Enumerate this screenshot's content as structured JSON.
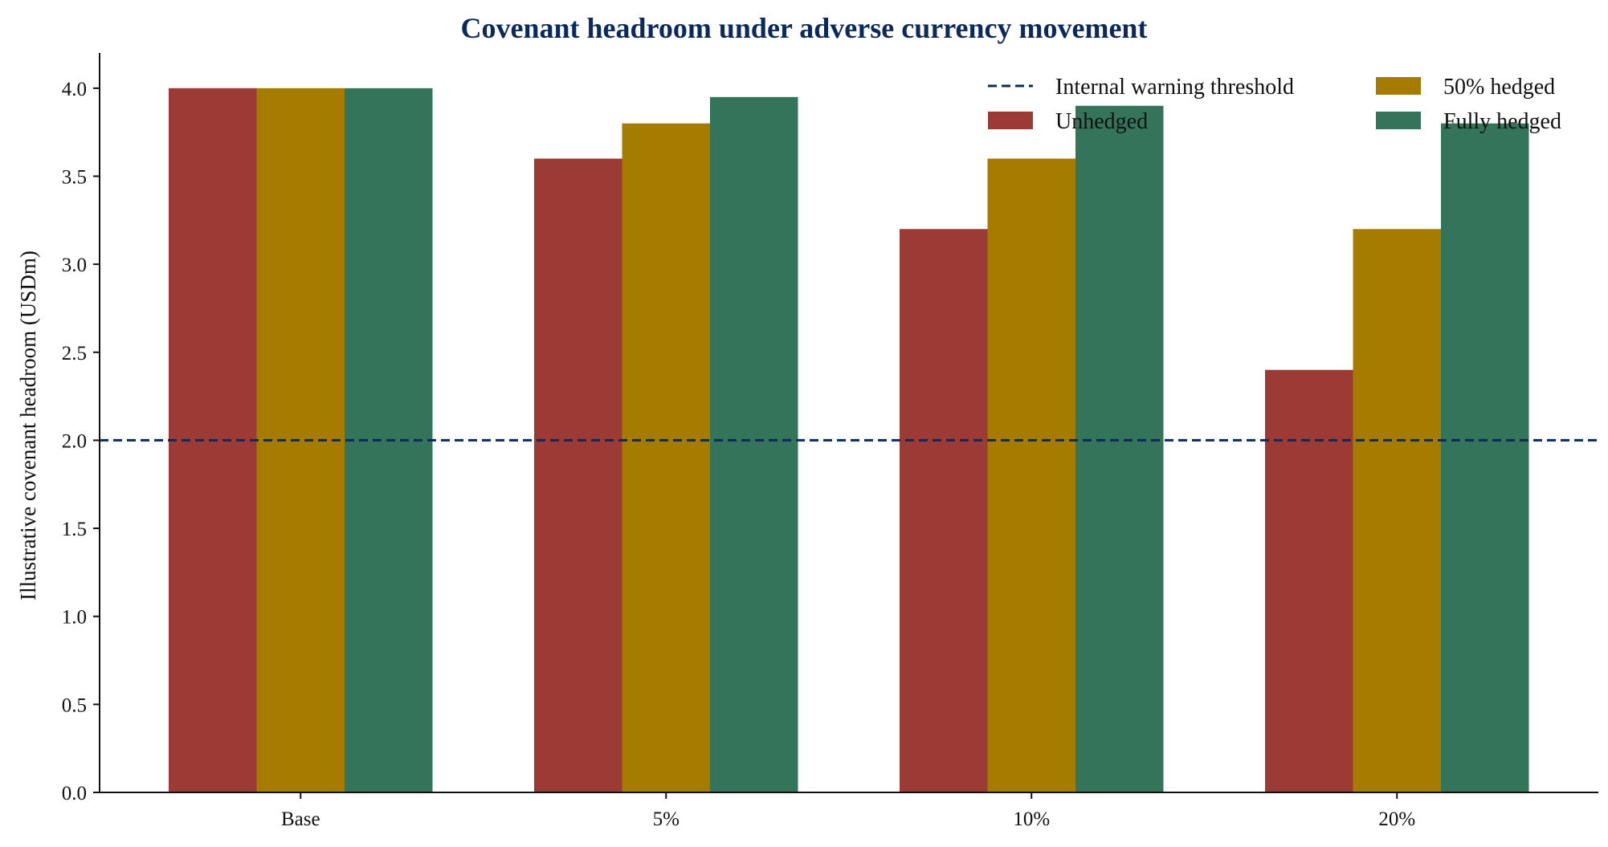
{
  "chart_data": {
    "type": "bar",
    "title": "Covenant headroom under adverse currency movement",
    "xlabel": "",
    "ylabel": "Illustrative covenant headroom (USDm)",
    "categories": [
      "Base",
      "5%",
      "10%",
      "20%"
    ],
    "series": [
      {
        "name": "Unhedged",
        "values": [
          4.0,
          3.6,
          3.2,
          2.4
        ],
        "color": "#9c3a35"
      },
      {
        "name": "50% hedged",
        "values": [
          4.0,
          3.8,
          3.6,
          3.2
        ],
        "color": "#a67c00"
      },
      {
        "name": "Fully hedged",
        "values": [
          4.0,
          3.95,
          3.9,
          3.8
        ],
        "color": "#34745a"
      }
    ],
    "reference_line": {
      "name": "Internal warning threshold",
      "value": 2.0,
      "color": "#0b2a5b",
      "style": "dashed"
    },
    "ylim": [
      0,
      4.2
    ],
    "yticks": [
      0.0,
      0.5,
      1.0,
      1.5,
      2.0,
      2.5,
      3.0,
      3.5,
      4.0
    ],
    "ytick_labels": [
      "0.0",
      "0.5",
      "1.0",
      "1.5",
      "2.0",
      "2.5",
      "3.0",
      "3.5",
      "4.0"
    ],
    "grid": false,
    "legend_position": "top-right"
  }
}
